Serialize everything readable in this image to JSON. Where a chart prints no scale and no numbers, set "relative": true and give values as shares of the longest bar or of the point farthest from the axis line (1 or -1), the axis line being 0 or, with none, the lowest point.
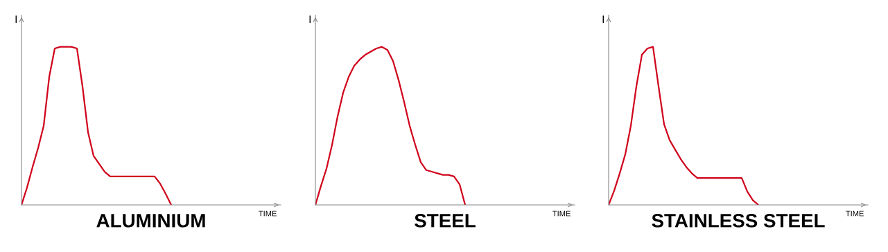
{
  "chart_data": [
    {
      "type": "line",
      "title": "ALUMINIUM",
      "xlabel": "TIME",
      "ylabel": "I",
      "relative": true,
      "categories": [
        null,
        null,
        null,
        null,
        null,
        null,
        null,
        null,
        null,
        null,
        null,
        null,
        null,
        null,
        null,
        null,
        null,
        null,
        null,
        null,
        null,
        null,
        null,
        null,
        null,
        null,
        null,
        null,
        null,
        null,
        null,
        null,
        null,
        null,
        null,
        null,
        null,
        null,
        null,
        null,
        null,
        null,
        null,
        null,
        null,
        null,
        null
      ],
      "series": [
        {
          "color": "#d0021b",
          "values": [
            0,
            0.11,
            0.24,
            0.36,
            0.5,
            0.81,
            0.99,
            1,
            1,
            1,
            0.99,
            0.75,
            0.46,
            0.31,
            0.26,
            0.21,
            0.18,
            0.18,
            0.18,
            0.18,
            0.18,
            0.18,
            0.18,
            0.18,
            0.18,
            0.135,
            0.07,
            0,
            null,
            null,
            null,
            null,
            null,
            null,
            null,
            null,
            null,
            null,
            null,
            null,
            null,
            null,
            null,
            null,
            null,
            null,
            null
          ]
        }
      ]
    },
    {
      "type": "line",
      "title": "STEEL",
      "xlabel": "TIME",
      "ylabel": "I",
      "relative": true,
      "categories": [
        null,
        null,
        null,
        null,
        null,
        null,
        null,
        null,
        null,
        null,
        null,
        null,
        null,
        null,
        null,
        null,
        null,
        null,
        null,
        null,
        null,
        null,
        null,
        null,
        null,
        null,
        null,
        null,
        null,
        null,
        null,
        null,
        null,
        null,
        null,
        null,
        null,
        null,
        null,
        null,
        null,
        null,
        null,
        null,
        null,
        null,
        null
      ],
      "series": [
        {
          "color": "#d0021b",
          "values": [
            0,
            0.12,
            0.23,
            0.38,
            0.56,
            0.71,
            0.81,
            0.88,
            0.92,
            0.95,
            0.97,
            0.99,
            1,
            0.98,
            0.91,
            0.79,
            0.65,
            0.5,
            0.38,
            0.27,
            0.22,
            0.21,
            0.2,
            0.19,
            0.19,
            0.18,
            0.13,
            0,
            null,
            null,
            null,
            null,
            null,
            null,
            null,
            null,
            null,
            null,
            null,
            null,
            null,
            null,
            null,
            null,
            null,
            null,
            null
          ]
        }
      ]
    },
    {
      "type": "line",
      "title": "STAINLESS STEEL",
      "xlabel": "TIME",
      "ylabel": "I",
      "relative": true,
      "categories": [
        null,
        null,
        null,
        null,
        null,
        null,
        null,
        null,
        null,
        null,
        null,
        null,
        null,
        null,
        null,
        null,
        null,
        null,
        null,
        null,
        null,
        null,
        null,
        null,
        null,
        null,
        null,
        null,
        null,
        null,
        null,
        null,
        null,
        null,
        null,
        null,
        null,
        null,
        null,
        null,
        null,
        null,
        null,
        null,
        null,
        null,
        null
      ],
      "series": [
        {
          "color": "#d0021b",
          "values": [
            0,
            0.09,
            0.2,
            0.32,
            0.5,
            0.75,
            0.95,
            0.99,
            1,
            0.75,
            0.51,
            0.41,
            0.35,
            0.29,
            0.24,
            0.2,
            0.17,
            0.17,
            0.17,
            0.17,
            0.17,
            0.17,
            0.17,
            0.17,
            0.17,
            0.085,
            0.03,
            0,
            null,
            null,
            null,
            null,
            null,
            null,
            null,
            null,
            null,
            null,
            null,
            null,
            null,
            null,
            null,
            null,
            null,
            null,
            null
          ]
        }
      ]
    }
  ]
}
